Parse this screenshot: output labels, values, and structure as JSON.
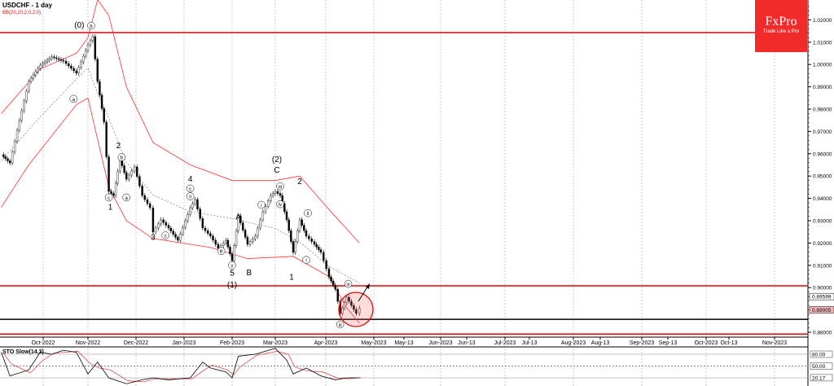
{
  "header": {
    "title": "USDCHF - 1 day",
    "indicator": "BB(20,20,2.0,2.0)",
    "logo": "FxPro",
    "tagline": "Trade Like a Pro"
  },
  "colors": {
    "accent": "#e00000",
    "logo_bg": "#f22a2a",
    "candle": "#000000",
    "band": "#ff3030"
  },
  "chart_data": {
    "type": "candlestick",
    "symbol": "USDCHF",
    "timeframe": "1 day",
    "y_ticks": [
      "1.02000",
      "1.01000",
      "1.00000",
      "0.99000",
      "0.98000",
      "0.97000",
      "0.96000",
      "0.95000",
      "0.94000",
      "0.93000",
      "0.92000",
      "0.91000",
      "0.90000",
      "0.88000"
    ],
    "ylim": [
      0.877,
      1.029
    ],
    "x_ticks": [
      "Oct-2022",
      "Nov-2022",
      "Dec-2022",
      "Jan-2023",
      "Feb-2023",
      "Mar-2023",
      "Apr-2023",
      "May-2023",
      "May-13",
      "Jun-2023",
      "Jun-13",
      "Jul-2023",
      "Jul-13",
      "Aug-2023",
      "Aug-13",
      "Sep-2023",
      "Sep-13",
      "Oct-2023",
      "Oct-13",
      "Nov-2023"
    ],
    "price_labels": [
      {
        "text": "0.89599",
        "value": 0.89599,
        "style": "box"
      },
      {
        "text": "0.89005",
        "value": 0.89005,
        "style": "pink"
      }
    ],
    "horizontal_lines": [
      {
        "value": 1.0143,
        "color": "#e00000"
      },
      {
        "value": 0.9008,
        "color": "#e00000"
      },
      {
        "value": 0.8858,
        "color": "#000000"
      },
      {
        "value": 0.8792,
        "color": "#e00000"
      }
    ],
    "closes": [
      [
        "2022-09-02",
        0.9596
      ],
      [
        "2022-09-08",
        0.9559
      ],
      [
        "2022-09-13",
        0.9705
      ],
      [
        "2022-09-21",
        0.9924
      ],
      [
        "2022-09-29",
        0.9997
      ],
      [
        "2022-10-07",
        1.0034
      ],
      [
        "2022-10-15",
        1.0015
      ],
      [
        "2022-10-24",
        0.9961
      ],
      [
        "2022-11-01",
        1.0088
      ],
      [
        "2022-11-04",
        1.0125
      ],
      [
        "2022-11-07",
        0.9924
      ],
      [
        "2022-11-11",
        0.9742
      ],
      [
        "2022-11-14",
        0.9431
      ],
      [
        "2022-11-17",
        0.9413
      ],
      [
        "2022-11-21",
        0.9577
      ],
      [
        "2022-11-25",
        0.9486
      ],
      [
        "2022-11-30",
        0.9541
      ],
      [
        "2022-12-05",
        0.9413
      ],
      [
        "2022-12-10",
        0.9358
      ],
      [
        "2022-12-12",
        0.9249
      ],
      [
        "2022-12-17",
        0.9304
      ],
      [
        "2022-12-22",
        0.9267
      ],
      [
        "2022-12-28",
        0.9212
      ],
      [
        "2023-01-05",
        0.9358
      ],
      [
        "2023-01-08",
        0.9395
      ],
      [
        "2023-01-13",
        0.9267
      ],
      [
        "2023-01-18",
        0.9231
      ],
      [
        "2023-01-23",
        0.9176
      ],
      [
        "2023-01-28",
        0.9212
      ],
      [
        "2023-02-01",
        0.9121
      ],
      [
        "2023-02-05",
        0.9322
      ],
      [
        "2023-02-11",
        0.9194
      ],
      [
        "2023-02-16",
        0.9231
      ],
      [
        "2023-02-21",
        0.934
      ],
      [
        "2023-02-26",
        0.9413
      ],
      [
        "2023-03-01",
        0.9431
      ],
      [
        "2023-03-04",
        0.9413
      ],
      [
        "2023-03-08",
        0.9304
      ],
      [
        "2023-03-12",
        0.9158
      ],
      [
        "2023-03-16",
        0.9304
      ],
      [
        "2023-03-20",
        0.9231
      ],
      [
        "2023-03-25",
        0.9194
      ],
      [
        "2023-03-29",
        0.9158
      ],
      [
        "2023-04-03",
        0.9048
      ],
      [
        "2023-04-07",
        0.8993
      ],
      [
        "2023-04-10",
        0.8884
      ],
      [
        "2023-04-14",
        0.8957
      ],
      [
        "2023-04-17",
        0.892
      ],
      [
        "2023-04-20",
        0.8884
      ],
      [
        "2023-04-22",
        0.8909
      ]
    ],
    "bb_upper": [
      [
        "2022-09-02",
        0.978
      ],
      [
        "2022-09-29",
        0.998
      ],
      [
        "2022-10-24",
        1.005
      ],
      [
        "2022-11-01",
        1.012
      ],
      [
        "2022-11-07",
        1.029
      ],
      [
        "2022-11-14",
        1.022
      ],
      [
        "2022-11-25",
        0.99
      ],
      [
        "2022-12-12",
        0.965
      ],
      [
        "2023-01-05",
        0.955
      ],
      [
        "2023-02-01",
        0.948
      ],
      [
        "2023-03-01",
        0.948
      ],
      [
        "2023-03-16",
        0.95
      ],
      [
        "2023-04-03",
        0.935
      ],
      [
        "2023-04-22",
        0.92
      ]
    ],
    "bb_lower": [
      [
        "2022-09-02",
        0.936
      ],
      [
        "2022-09-21",
        0.955
      ],
      [
        "2022-10-24",
        0.982
      ],
      [
        "2022-11-01",
        0.985
      ],
      [
        "2022-11-14",
        0.945
      ],
      [
        "2022-11-25",
        0.93
      ],
      [
        "2022-12-12",
        0.922
      ],
      [
        "2023-01-18",
        0.918
      ],
      [
        "2023-02-11",
        0.913
      ],
      [
        "2023-03-12",
        0.914
      ],
      [
        "2023-04-03",
        0.905
      ],
      [
        "2023-04-14",
        0.891
      ],
      [
        "2023-04-22",
        0.884
      ]
    ],
    "wave_labels": [
      {
        "t": "(0)",
        "d": "2022-10-26",
        "p": 1.0165
      },
      {
        "t": "b",
        "d": "2022-11-03",
        "p": 1.0165,
        "c": 1
      },
      {
        "t": "a",
        "d": "2022-10-22",
        "p": 0.9837,
        "c": 1
      },
      {
        "t": "2",
        "d": "2022-11-20",
        "p": 0.9625
      },
      {
        "t": "c",
        "d": "2022-11-14",
        "p": 0.9395,
        "c": 1
      },
      {
        "t": "1",
        "d": "2022-11-15",
        "p": 0.935
      },
      {
        "t": "4",
        "d": "2023-01-05",
        "p": 0.9475
      },
      {
        "t": "c",
        "d": "2023-01-05",
        "p": 0.9435,
        "c": 1
      },
      {
        "t": "3",
        "d": "2022-12-12",
        "p": 0.9215
      },
      {
        "t": "5",
        "d": "2023-02-01",
        "p": 0.9053
      },
      {
        "t": "(1)",
        "d": "2023-02-01",
        "p": 0.9
      },
      {
        "t": "A",
        "d": "2023-02-05",
        "p": 0.9305
      },
      {
        "t": "B",
        "d": "2023-02-12",
        "p": 0.9055
      },
      {
        "t": "(2)",
        "d": "2023-03-02",
        "p": 0.9562
      },
      {
        "t": "C",
        "d": "2023-03-02",
        "p": 0.9515
      },
      {
        "t": "1",
        "d": "2023-03-11",
        "p": 0.9035
      },
      {
        "t": "2",
        "d": "2023-03-16",
        "p": 0.9465
      },
      {
        "t": "iv",
        "d": "2023-04-15",
        "p": 0.9008,
        "c": 1
      },
      {
        "t": "iii",
        "d": "2023-04-10",
        "p": 0.8826,
        "c": 1
      },
      {
        "t": "v",
        "d": "2023-02-01",
        "p": 0.9055,
        "c": 1
      },
      {
        "t": "iii",
        "d": "2023-03-04",
        "p": 0.9445,
        "c": 1
      },
      {
        "t": "iv",
        "d": "2023-03-04",
        "p": 0.9365,
        "c": 1
      },
      {
        "t": "ii",
        "d": "2023-03-21",
        "p": 0.9325,
        "c": 1
      },
      {
        "t": "i",
        "d": "2023-03-20",
        "p": 0.9115,
        "c": 1
      },
      {
        "t": "a",
        "d": "2022-11-25",
        "p": 0.9395,
        "c": 1
      },
      {
        "t": "b",
        "d": "2022-11-22",
        "p": 0.9575,
        "c": 1
      },
      {
        "t": "c",
        "d": "2022-12-20",
        "p": 0.9225,
        "c": 1
      },
      {
        "t": "iii",
        "d": "2023-01-25",
        "p": 0.9155,
        "c": 1
      },
      {
        "t": "ii",
        "d": "2023-01-05",
        "p": 0.94,
        "c": 1
      },
      {
        "t": "i",
        "d": "2023-02-20",
        "p": 0.9362,
        "c": 1
      }
    ],
    "stochastic": {
      "name": "STO Slow(14,3)",
      "levels": [
        "80.00",
        "50.00",
        "20.17"
      ],
      "current": 20.17,
      "k": [
        [
          "2022-09-02",
          85
        ],
        [
          "2022-09-08",
          25
        ],
        [
          "2022-09-21",
          40
        ],
        [
          "2022-09-29",
          85
        ],
        [
          "2022-10-07",
          80
        ],
        [
          "2022-10-15",
          90
        ],
        [
          "2022-10-24",
          85
        ],
        [
          "2022-11-01",
          30
        ],
        [
          "2022-11-07",
          60
        ],
        [
          "2022-11-14",
          20
        ],
        [
          "2022-11-25",
          5
        ],
        [
          "2022-12-05",
          15
        ],
        [
          "2022-12-12",
          20
        ],
        [
          "2022-12-22",
          15
        ],
        [
          "2023-01-05",
          20
        ],
        [
          "2023-01-13",
          60
        ],
        [
          "2023-01-18",
          45
        ],
        [
          "2023-01-28",
          35
        ],
        [
          "2023-02-01",
          20
        ],
        [
          "2023-02-05",
          75
        ],
        [
          "2023-02-16",
          80
        ],
        [
          "2023-03-01",
          95
        ],
        [
          "2023-03-08",
          65
        ],
        [
          "2023-03-12",
          30
        ],
        [
          "2023-03-20",
          45
        ],
        [
          "2023-03-29",
          25
        ],
        [
          "2023-04-07",
          15
        ],
        [
          "2023-04-14",
          20
        ],
        [
          "2023-04-20",
          20
        ],
        [
          "2023-04-22",
          20
        ]
      ]
    }
  }
}
